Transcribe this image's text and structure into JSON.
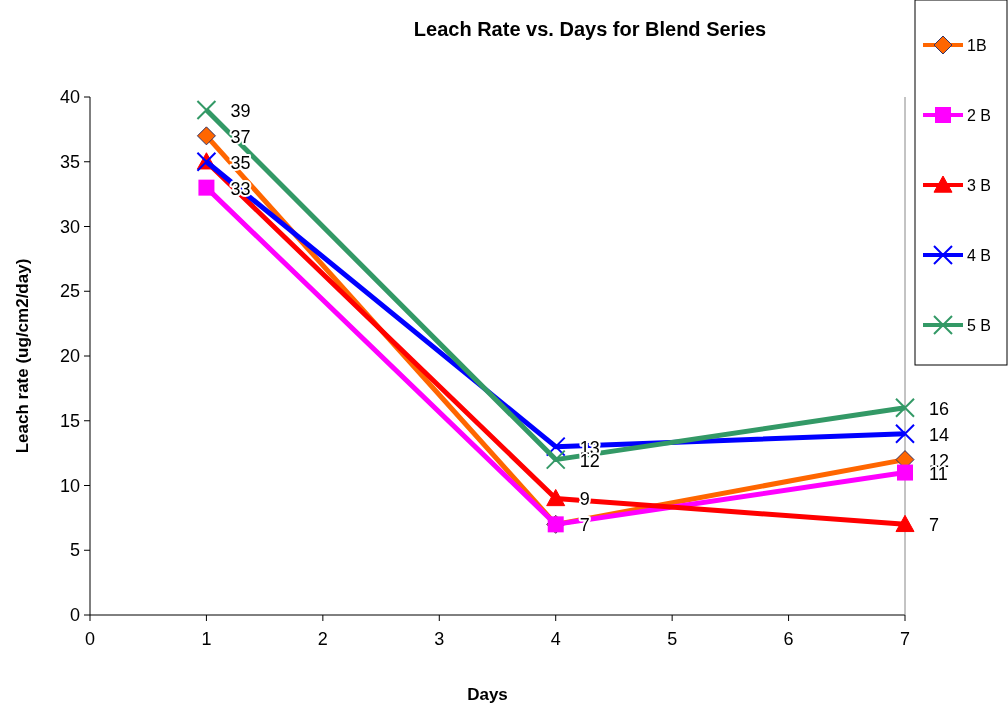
{
  "chart_data": {
    "type": "line",
    "title": "Leach  Rate vs. Days for Blend Series",
    "xlabel": "Days",
    "ylabel": "Leach rate (ug/cm2/day)",
    "x": [
      1,
      4,
      7
    ],
    "xlim": [
      0,
      7
    ],
    "xticks": [
      0,
      1,
      2,
      3,
      4,
      5,
      6,
      7
    ],
    "ylim": [
      0,
      40
    ],
    "yticks": [
      0,
      5,
      10,
      15,
      20,
      25,
      30,
      35,
      40
    ],
    "grid": false,
    "legend": "top right",
    "series": [
      {
        "name": "1B",
        "color": "#ff6600",
        "marker": "diamond",
        "values": [
          37,
          7,
          12
        ],
        "value_labels": [
          "37",
          "7",
          "12"
        ]
      },
      {
        "name": "2 B",
        "color": "#ff00ff",
        "marker": "square",
        "values": [
          33,
          7,
          11
        ],
        "value_labels": [
          "33",
          null,
          "11"
        ]
      },
      {
        "name": "3 B",
        "color": "#ff0000",
        "marker": "triangle",
        "values": [
          35,
          9,
          7
        ],
        "value_labels": [
          "35",
          "9",
          "7"
        ]
      },
      {
        "name": "4 B",
        "color": "#0000ff",
        "marker": "cross",
        "values": [
          35,
          13,
          14
        ],
        "value_labels": [
          null,
          "13",
          "14"
        ]
      },
      {
        "name": "5 B",
        "color": "#339966",
        "marker": "cross",
        "values": [
          39,
          12,
          16
        ],
        "value_labels": [
          "39",
          "12",
          "16"
        ]
      }
    ]
  }
}
